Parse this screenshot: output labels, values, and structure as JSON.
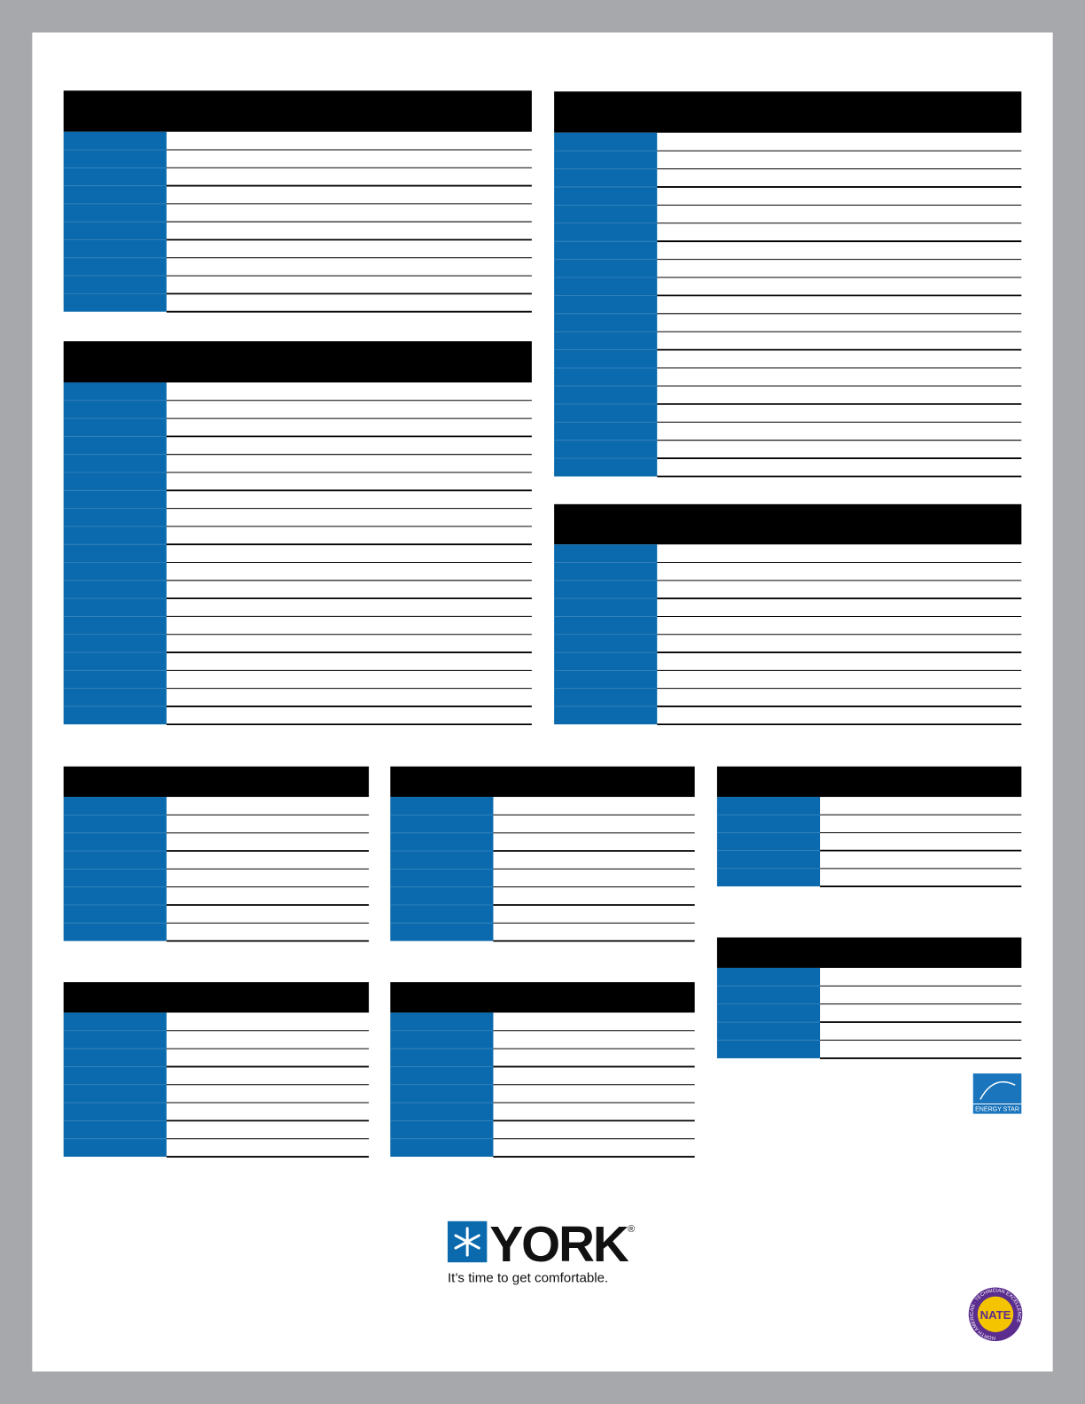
{
  "brand": {
    "wordmark": "YORK",
    "registered": "®",
    "tagline": "It’s time to get comfortable."
  },
  "energy_star": {
    "label": "ENERGY STAR"
  },
  "nate": {
    "label": "NATE",
    "ring": "NORTH AMERICAN · TECHNICIAN EXCELLENCE"
  }
}
